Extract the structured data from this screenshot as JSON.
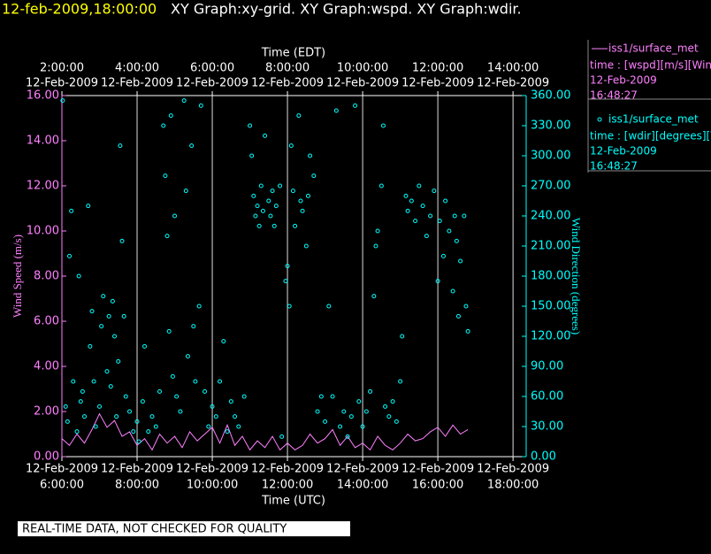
{
  "header": {
    "timestamp": "12-feb-2009,18:00:00",
    "title": "XY Graph:xy-grid.  XY Graph:wspd.  XY Graph:wdir."
  },
  "notice": "REAL-TIME DATA, NOT CHECKED FOR QUALITY",
  "chart_data": {
    "type": "combo",
    "xlabel": "Time (UTC)",
    "x2label": "Time (EDT)",
    "ylabel": "Wind Speed (m/s)",
    "y2label": "Wind Direction (degrees)",
    "grid": "x",
    "xlim": [
      6,
      18.35
    ],
    "xticks": [
      {
        "value": 6,
        "label": "6:00:00",
        "date": "12-Feb-2009"
      },
      {
        "value": 8,
        "label": "8:00:00",
        "date": "12-Feb-2009"
      },
      {
        "value": 10,
        "label": "10:00:00",
        "date": "12-Feb-2009"
      },
      {
        "value": 12,
        "label": "12:00:00",
        "date": "12-Feb-2009"
      },
      {
        "value": 14,
        "label": "14:00:00",
        "date": "12-Feb-2009"
      },
      {
        "value": 16,
        "label": "16:00:00",
        "date": "12-Feb-2009"
      },
      {
        "value": 18,
        "label": "18:00:00",
        "date": "12-Feb-2009"
      }
    ],
    "x2lim": [
      2,
      14.35
    ],
    "x2ticks": [
      {
        "value": 2,
        "label": "2:00:00",
        "date": "12-Feb-2009"
      },
      {
        "value": 4,
        "label": "4:00:00",
        "date": "12-Feb-2009"
      },
      {
        "value": 6,
        "label": "6:00:00",
        "date": "12-Feb-2009"
      },
      {
        "value": 8,
        "label": "8:00:00",
        "date": "12-Feb-2009"
      },
      {
        "value": 10,
        "label": "10:00:00",
        "date": "12-Feb-2009"
      },
      {
        "value": 12,
        "label": "12:00:00",
        "date": "12-Feb-2009"
      },
      {
        "value": 14,
        "label": "14:00:00",
        "date": "12-Feb-2009"
      }
    ],
    "ylim": [
      0,
      16
    ],
    "yticks": [
      {
        "value": 0,
        "label": "0.00"
      },
      {
        "value": 2,
        "label": "2.00"
      },
      {
        "value": 4,
        "label": "4.00"
      },
      {
        "value": 6,
        "label": "6.00"
      },
      {
        "value": 8,
        "label": "8.00"
      },
      {
        "value": 10,
        "label": "10.00"
      },
      {
        "value": 12,
        "label": "12.00"
      },
      {
        "value": 14,
        "label": "14.00"
      },
      {
        "value": 16,
        "label": "16.00"
      }
    ],
    "y2lim": [
      0,
      360
    ],
    "y2ticks": [
      {
        "value": 0,
        "label": "0.00"
      },
      {
        "value": 30,
        "label": "30.00"
      },
      {
        "value": 60,
        "label": "60.00"
      },
      {
        "value": 90,
        "label": "90.00"
      },
      {
        "value": 120,
        "label": "120.00"
      },
      {
        "value": 150,
        "label": "150.00"
      },
      {
        "value": 180,
        "label": "180.00"
      },
      {
        "value": 210,
        "label": "210.00"
      },
      {
        "value": 240,
        "label": "240.00"
      },
      {
        "value": 270,
        "label": "270.00"
      },
      {
        "value": 300,
        "label": "300.00"
      },
      {
        "value": 330,
        "label": "330.00"
      },
      {
        "value": 360,
        "label": "360.00"
      }
    ],
    "series": [
      {
        "name": "iss1/surface_met",
        "label": "time : [wspd][m/s][Wind",
        "date": "12-Feb-2009",
        "time": "16:48:27",
        "type": "line",
        "color": "#ff80ff",
        "axis": "y",
        "x": [
          6.0,
          6.2,
          6.4,
          6.6,
          6.8,
          7.0,
          7.2,
          7.4,
          7.6,
          7.8,
          8.0,
          8.2,
          8.4,
          8.6,
          8.8,
          9.0,
          9.2,
          9.4,
          9.6,
          9.8,
          10.0,
          10.2,
          10.4,
          10.6,
          10.8,
          11.0,
          11.2,
          11.4,
          11.6,
          11.8,
          12.0,
          12.2,
          12.4,
          12.6,
          12.8,
          13.0,
          13.2,
          13.4,
          13.6,
          13.8,
          14.0,
          14.2,
          14.4,
          14.6,
          14.8,
          15.0,
          15.2,
          15.4,
          15.6,
          15.8,
          16.0,
          16.2,
          16.4,
          16.6,
          16.8
        ],
        "values": [
          0.8,
          0.5,
          1.0,
          0.6,
          1.2,
          1.9,
          1.3,
          1.6,
          0.9,
          1.1,
          0.5,
          0.8,
          0.3,
          1.0,
          0.6,
          0.9,
          0.4,
          1.1,
          0.7,
          1.0,
          1.3,
          0.6,
          1.4,
          0.5,
          0.9,
          0.3,
          0.7,
          0.4,
          0.9,
          0.3,
          0.6,
          0.3,
          0.5,
          1.0,
          0.6,
          0.8,
          1.2,
          0.5,
          0.9,
          0.4,
          0.6,
          0.3,
          0.9,
          0.5,
          0.3,
          0.6,
          1.0,
          0.7,
          0.8,
          1.1,
          1.3,
          0.9,
          1.4,
          1.0,
          1.2
        ]
      },
      {
        "name": "iss1/surface_met",
        "label": "time : [wdir][degrees][V",
        "date": "12-Feb-2009",
        "time": "16:48:27",
        "type": "scatter",
        "color": "#00ffff",
        "axis": "y2",
        "x": [
          6.02,
          6.1,
          6.15,
          6.2,
          6.25,
          6.3,
          6.4,
          6.45,
          6.5,
          6.55,
          6.6,
          6.7,
          6.75,
          6.8,
          6.85,
          6.9,
          7.0,
          7.05,
          7.1,
          7.2,
          7.25,
          7.3,
          7.35,
          7.4,
          7.45,
          7.5,
          7.55,
          7.6,
          7.65,
          7.7,
          7.8,
          7.9,
          8.0,
          8.05,
          8.15,
          8.2,
          8.3,
          8.4,
          8.5,
          8.6,
          8.7,
          8.75,
          8.8,
          8.85,
          8.9,
          8.95,
          9.0,
          9.05,
          9.15,
          9.25,
          9.3,
          9.35,
          9.45,
          9.5,
          9.55,
          9.65,
          9.7,
          9.8,
          9.9,
          10.0,
          10.1,
          10.2,
          10.3,
          10.4,
          10.5,
          10.6,
          10.7,
          10.85,
          11.0,
          11.05,
          11.1,
          11.15,
          11.2,
          11.25,
          11.3,
          11.35,
          11.4,
          11.5,
          11.55,
          11.6,
          11.65,
          11.7,
          11.8,
          11.85,
          11.95,
          12.0,
          12.05,
          12.1,
          12.15,
          12.2,
          12.3,
          12.35,
          12.4,
          12.5,
          12.55,
          12.6,
          12.7,
          12.8,
          12.9,
          13.0,
          13.1,
          13.2,
          13.3,
          13.4,
          13.5,
          13.6,
          13.7,
          13.8,
          13.9,
          14.0,
          14.1,
          14.2,
          14.3,
          14.35,
          14.4,
          14.5,
          14.55,
          14.6,
          14.7,
          14.8,
          14.9,
          15.0,
          15.05,
          15.15,
          15.2,
          15.3,
          15.4,
          15.5,
          15.6,
          15.7,
          15.8,
          15.9,
          16.0,
          16.05,
          16.15,
          16.2,
          16.3,
          16.4,
          16.45,
          16.5,
          16.55,
          16.6,
          16.7,
          16.75,
          16.8
        ],
        "values": [
          355,
          50,
          35,
          200,
          245,
          75,
          25,
          180,
          55,
          65,
          40,
          250,
          110,
          145,
          75,
          30,
          50,
          130,
          160,
          85,
          140,
          70,
          155,
          120,
          40,
          95,
          310,
          215,
          140,
          60,
          45,
          25,
          35,
          15,
          55,
          110,
          25,
          40,
          30,
          65,
          330,
          280,
          220,
          125,
          340,
          80,
          240,
          60,
          45,
          355,
          265,
          100,
          310,
          130,
          75,
          150,
          350,
          65,
          30,
          50,
          40,
          75,
          115,
          25,
          55,
          40,
          30,
          60,
          330,
          300,
          260,
          240,
          250,
          230,
          270,
          245,
          320,
          255,
          240,
          265,
          230,
          250,
          270,
          20,
          175,
          190,
          150,
          310,
          265,
          230,
          340,
          255,
          245,
          210,
          260,
          300,
          280,
          45,
          60,
          35,
          150,
          60,
          345,
          30,
          45,
          20,
          40,
          350,
          55,
          30,
          45,
          65,
          160,
          210,
          225,
          270,
          330,
          50,
          40,
          55,
          35,
          75,
          120,
          260,
          245,
          255,
          235,
          270,
          250,
          220,
          240,
          265,
          175,
          235,
          200,
          255,
          225,
          165,
          240,
          215,
          140,
          195,
          240,
          150,
          125
        ]
      }
    ]
  }
}
